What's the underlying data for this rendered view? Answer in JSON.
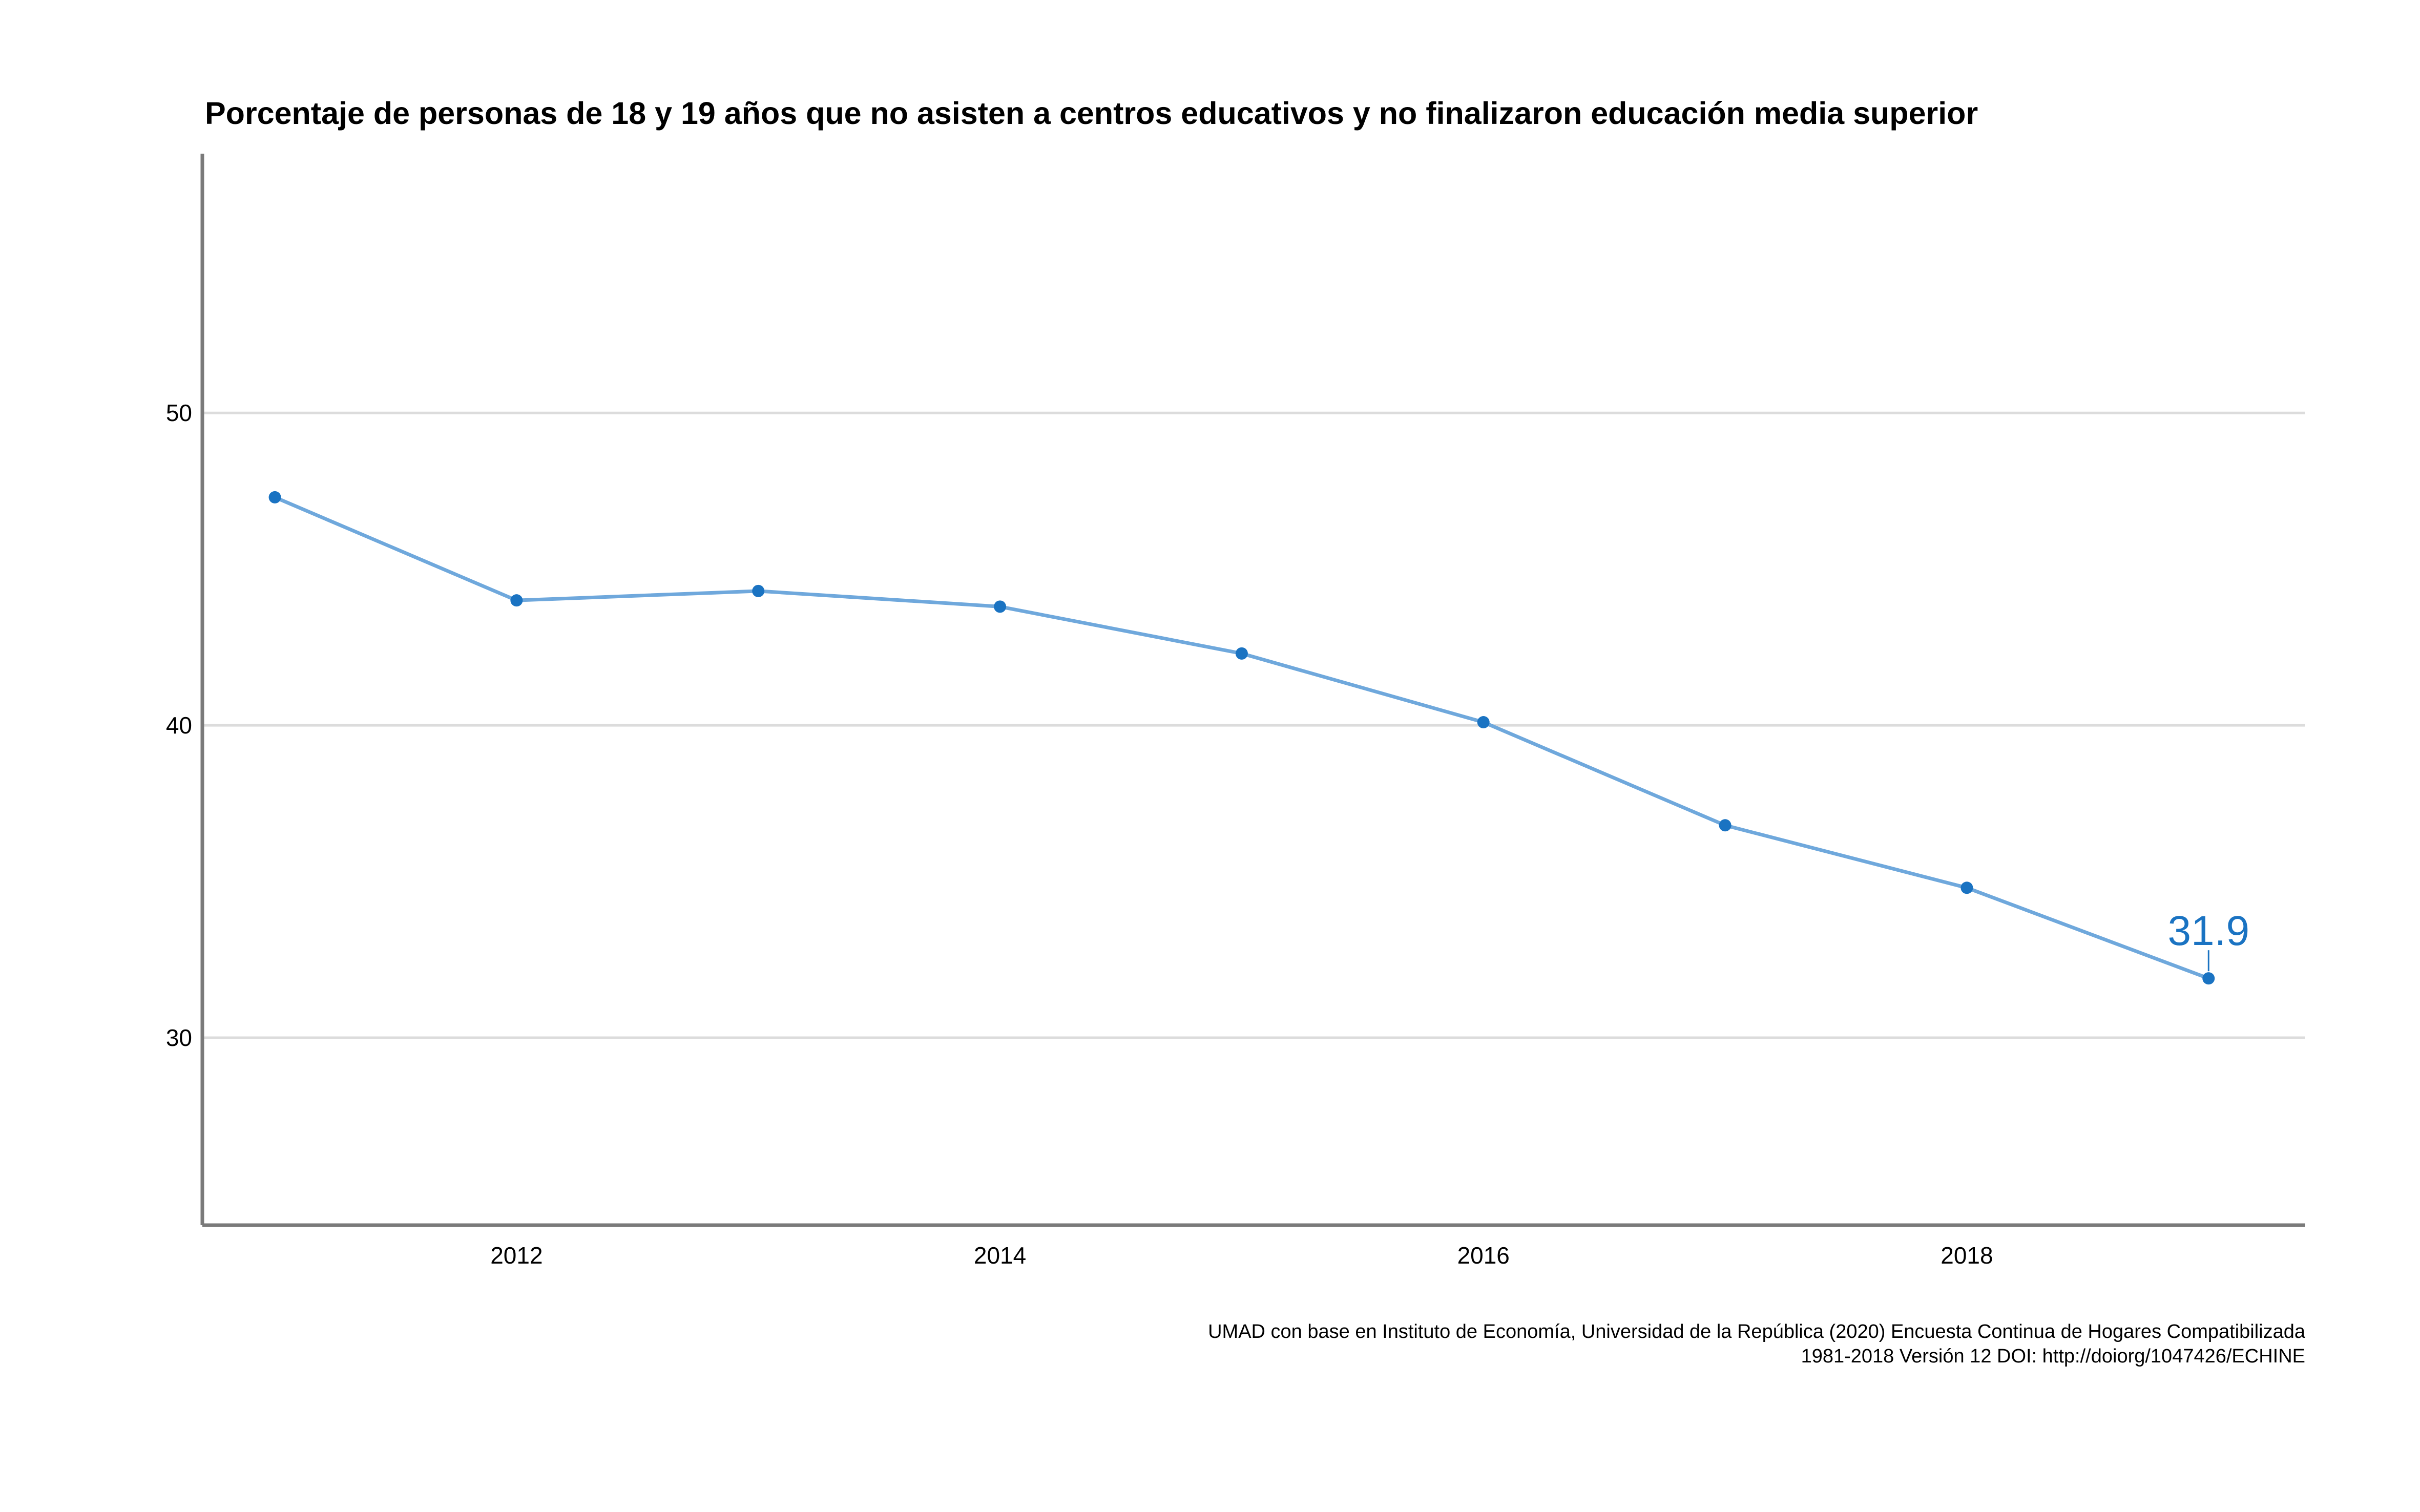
{
  "chart_data": {
    "type": "line",
    "title": "Porcentaje de personas de 18 y 19 años que no asisten a centros educativos y no finalizaron educación media superior",
    "xlabel": "",
    "ylabel": "",
    "x": [
      2011,
      2012,
      2013,
      2014,
      2015,
      2016,
      2017,
      2018,
      2019
    ],
    "y": [
      47.3,
      44.0,
      44.3,
      43.8,
      42.3,
      40.1,
      36.8,
      34.8,
      31.9
    ],
    "xlim": [
      2010.7,
      2019.4
    ],
    "ylim": [
      24,
      58.3
    ],
    "x_ticks": [
      2012,
      2014,
      2016,
      2018
    ],
    "x_tick_labels": [
      "2012",
      "2014",
      "2016",
      "2018"
    ],
    "y_ticks": [
      30,
      40,
      50
    ],
    "y_tick_labels": [
      "30",
      "40",
      "50"
    ],
    "grid": "horizontal",
    "legend": "none",
    "data_label": {
      "x": 2019,
      "text": "31.9"
    },
    "caption_lines": [
      "UMAD con base en Instituto de Economía, Universidad de la República (2020) Encuesta Continua de Hogares Compatibilizada",
      "1981-2018 Versión 12 DOI: http://doiorg/1047426/ECHINE"
    ],
    "colors": {
      "line": "#6fa8dc",
      "point": "#1a73c2",
      "label": "#1a73c2",
      "grid": "#dcdcdc",
      "axis": "#7a7a7a"
    }
  }
}
